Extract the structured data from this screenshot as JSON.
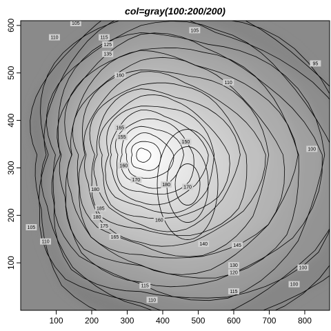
{
  "chart_data": {
    "type": "contour",
    "title": "col=gray(100:200/200)",
    "xlabel": "",
    "ylabel": "",
    "xlim": [
      0,
      870
    ],
    "ylim": [
      0,
      610
    ],
    "x_ticks": [
      100,
      200,
      300,
      400,
      500,
      600,
      700,
      800
    ],
    "y_ticks": [
      100,
      200,
      300,
      400,
      500,
      600
    ],
    "grid": false,
    "legend": "none",
    "fill_palette": "gray(100:200/200)",
    "colors": {
      "low": "#808080",
      "high": "#ffffff",
      "line": "#000000"
    },
    "summit": {
      "x": 300,
      "y": 345,
      "level": 195
    },
    "contour_levels": [
      95,
      100,
      105,
      110,
      115,
      120,
      125,
      130,
      135,
      140,
      145,
      150,
      155,
      160,
      165,
      170,
      175,
      180,
      185,
      190,
      195
    ],
    "contour_labels": [
      {
        "text": "105",
        "x": 155,
        "y": 605
      },
      {
        "text": "110",
        "x": 95,
        "y": 575
      },
      {
        "text": "115",
        "x": 235,
        "y": 575
      },
      {
        "text": "125",
        "x": 245,
        "y": 560
      },
      {
        "text": "135",
        "x": 245,
        "y": 540
      },
      {
        "text": "105",
        "x": 490,
        "y": 590
      },
      {
        "text": "95",
        "x": 830,
        "y": 520
      },
      {
        "text": "160",
        "x": 280,
        "y": 495
      },
      {
        "text": "110",
        "x": 585,
        "y": 480
      },
      {
        "text": "165",
        "x": 280,
        "y": 385
      },
      {
        "text": "155",
        "x": 285,
        "y": 365
      },
      {
        "text": "150",
        "x": 465,
        "y": 355
      },
      {
        "text": "160",
        "x": 290,
        "y": 305
      },
      {
        "text": "100",
        "x": 820,
        "y": 340
      },
      {
        "text": "170",
        "x": 325,
        "y": 275
      },
      {
        "text": "180",
        "x": 410,
        "y": 265
      },
      {
        "text": "170",
        "x": 470,
        "y": 260
      },
      {
        "text": "180",
        "x": 210,
        "y": 255
      },
      {
        "text": "185",
        "x": 225,
        "y": 215
      },
      {
        "text": "180",
        "x": 215,
        "y": 197
      },
      {
        "text": "175",
        "x": 235,
        "y": 178
      },
      {
        "text": "160",
        "x": 390,
        "y": 190
      },
      {
        "text": "165",
        "x": 265,
        "y": 155
      },
      {
        "text": "140",
        "x": 515,
        "y": 140
      },
      {
        "text": "145",
        "x": 610,
        "y": 137
      },
      {
        "text": "105",
        "x": 30,
        "y": 175
      },
      {
        "text": "110",
        "x": 70,
        "y": 145
      },
      {
        "text": "130",
        "x": 600,
        "y": 95
      },
      {
        "text": "120",
        "x": 600,
        "y": 80
      },
      {
        "text": "100",
        "x": 795,
        "y": 90
      },
      {
        "text": "115",
        "x": 350,
        "y": 52
      },
      {
        "text": "115",
        "x": 600,
        "y": 40
      },
      {
        "text": "110",
        "x": 370,
        "y": 22
      },
      {
        "text": "100",
        "x": 770,
        "y": 55
      }
    ]
  }
}
